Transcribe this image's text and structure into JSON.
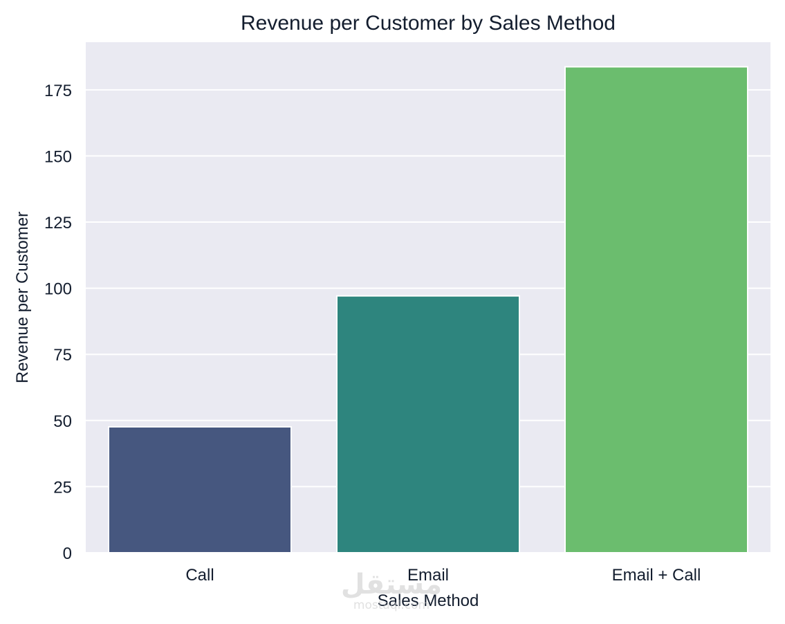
{
  "chart_data": {
    "type": "bar",
    "title": "Revenue per Customer by Sales Method",
    "xlabel": "Sales Method",
    "ylabel": "Revenue per Customer",
    "categories": [
      "Call",
      "Email",
      "Email + Call"
    ],
    "values": [
      47.6,
      97.1,
      183.7
    ],
    "ylim": [
      0,
      193
    ],
    "yticks": [
      0,
      25,
      50,
      75,
      100,
      125,
      150,
      175
    ],
    "ytick_labels": [
      "0",
      "25",
      "50",
      "75",
      "100",
      "125",
      "150",
      "175"
    ],
    "colors": [
      "#46577f",
      "#2e857e",
      "#6bbd6e"
    ],
    "grid": true,
    "background": "#eaeaf2",
    "legend": "none"
  },
  "watermark": {
    "logo_text": "مستقل",
    "sub_text": "mostaql.com"
  }
}
